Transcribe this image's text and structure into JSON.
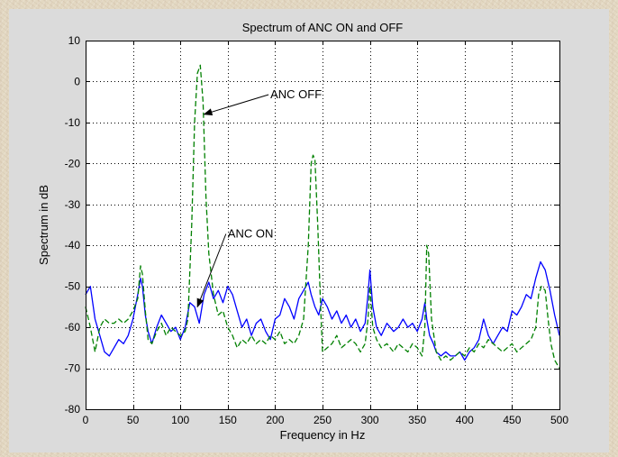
{
  "chart_data": {
    "type": "line",
    "title": "Spectrum of ANC ON and OFF",
    "xlabel": "Frequency in Hz",
    "ylabel": "Spectrum in dB",
    "xlim": [
      0,
      500
    ],
    "ylim": [
      -80,
      10
    ],
    "xticks": [
      0,
      50,
      100,
      150,
      200,
      250,
      300,
      350,
      400,
      450,
      500
    ],
    "yticks": [
      -80,
      -70,
      -60,
      -50,
      -40,
      -30,
      -20,
      -10,
      0,
      10
    ],
    "grid": true,
    "series": [
      {
        "name": "ANC ON",
        "color": "#0000ff",
        "dash": "solid",
        "x": [
          0,
          5,
          10,
          15,
          20,
          25,
          30,
          35,
          40,
          45,
          50,
          55,
          58,
          60,
          63,
          66,
          70,
          75,
          80,
          85,
          90,
          95,
          100,
          105,
          110,
          115,
          120,
          125,
          130,
          135,
          140,
          145,
          150,
          155,
          160,
          165,
          170,
          175,
          180,
          185,
          190,
          195,
          200,
          205,
          210,
          215,
          220,
          225,
          230,
          235,
          238,
          242,
          246,
          250,
          255,
          260,
          265,
          270,
          275,
          280,
          285,
          290,
          295,
          298,
          300,
          303,
          307,
          312,
          318,
          325,
          330,
          335,
          340,
          345,
          350,
          355,
          358,
          360,
          363,
          367,
          370,
          375,
          380,
          385,
          390,
          395,
          400,
          405,
          410,
          415,
          420,
          425,
          430,
          435,
          440,
          445,
          450,
          455,
          460,
          465,
          470,
          475,
          480,
          485,
          490,
          495,
          500
        ],
        "y": [
          -52,
          -50,
          -58,
          -62,
          -66,
          -67,
          -65,
          -63,
          -64,
          -62,
          -58,
          -52,
          -48,
          -50,
          -57,
          -61,
          -64,
          -60,
          -57,
          -59,
          -61,
          -60,
          -63,
          -60,
          -54,
          -55,
          -59,
          -52,
          -49,
          -53,
          -51,
          -54,
          -50,
          -52,
          -56,
          -60,
          -58,
          -62,
          -59,
          -58,
          -61,
          -63,
          -58,
          -57,
          -53,
          -55,
          -58,
          -53,
          -51,
          -49,
          -52,
          -55,
          -57,
          -53,
          -55,
          -58,
          -56,
          -59,
          -57,
          -60,
          -58,
          -61,
          -59,
          -52,
          -46,
          -55,
          -60,
          -62,
          -59,
          -61,
          -60,
          -58,
          -60,
          -59,
          -61,
          -58,
          -54,
          -58,
          -62,
          -64,
          -66,
          -67,
          -66,
          -67,
          -67,
          -66,
          -68,
          -66,
          -65,
          -63,
          -58,
          -62,
          -64,
          -62,
          -60,
          -61,
          -56,
          -57,
          -55,
          -52,
          -53,
          -48,
          -44,
          -46,
          -51,
          -57,
          -62
        ]
      },
      {
        "name": "ANC OFF",
        "color": "#008000",
        "dash": "dashed",
        "x": [
          0,
          5,
          10,
          15,
          20,
          25,
          30,
          35,
          40,
          45,
          50,
          55,
          58,
          60,
          63,
          66,
          70,
          75,
          80,
          85,
          90,
          95,
          100,
          105,
          108,
          112,
          115,
          118,
          121,
          124,
          127,
          130,
          135,
          140,
          145,
          150,
          155,
          160,
          165,
          170,
          175,
          180,
          185,
          190,
          195,
          200,
          205,
          210,
          215,
          220,
          225,
          230,
          235,
          238,
          240,
          242,
          245,
          248,
          250,
          255,
          260,
          265,
          270,
          275,
          280,
          285,
          290,
          295,
          298,
          300,
          303,
          307,
          312,
          318,
          325,
          330,
          335,
          340,
          345,
          350,
          355,
          358,
          360,
          362,
          365,
          370,
          375,
          380,
          385,
          390,
          395,
          400,
          405,
          410,
          415,
          420,
          425,
          430,
          435,
          440,
          445,
          450,
          455,
          460,
          465,
          470,
          475,
          478,
          481,
          485,
          488,
          491,
          495,
          500
        ],
        "y": [
          -55,
          -60,
          -66,
          -60,
          -58,
          -59,
          -59,
          -58,
          -59,
          -58,
          -56,
          -53,
          -45,
          -47,
          -56,
          -63,
          -64,
          -61,
          -59,
          -62,
          -60,
          -61,
          -62,
          -61,
          -58,
          -35,
          -10,
          2,
          4,
          -5,
          -28,
          -42,
          -52,
          -57,
          -56,
          -60,
          -62,
          -65,
          -63,
          -64,
          -62,
          -64,
          -63,
          -64,
          -62,
          -63,
          -61,
          -64,
          -63,
          -64,
          -62,
          -58,
          -40,
          -20,
          -18,
          -19,
          -35,
          -55,
          -66,
          -65,
          -64,
          -62,
          -65,
          -64,
          -63,
          -64,
          -66,
          -64,
          -58,
          -50,
          -60,
          -63,
          -65,
          -64,
          -66,
          -64,
          -65,
          -66,
          -64,
          -65,
          -67,
          -60,
          -40,
          -42,
          -58,
          -66,
          -68,
          -67,
          -68,
          -67,
          -66,
          -67,
          -65,
          -66,
          -64,
          -65,
          -63,
          -64,
          -65,
          -66,
          -65,
          -64,
          -66,
          -65,
          -64,
          -63,
          -60,
          -52,
          -50,
          -51,
          -58,
          -64,
          -68,
          -70
        ]
      }
    ],
    "annotations": [
      {
        "text": "ANC OFF",
        "x": 195,
        "y": -3.2,
        "arrow_to": [
          125,
          -8
        ]
      },
      {
        "text": "ANC ON",
        "x": 150,
        "y": -37.2,
        "arrow_to": [
          118,
          -55
        ]
      }
    ]
  }
}
